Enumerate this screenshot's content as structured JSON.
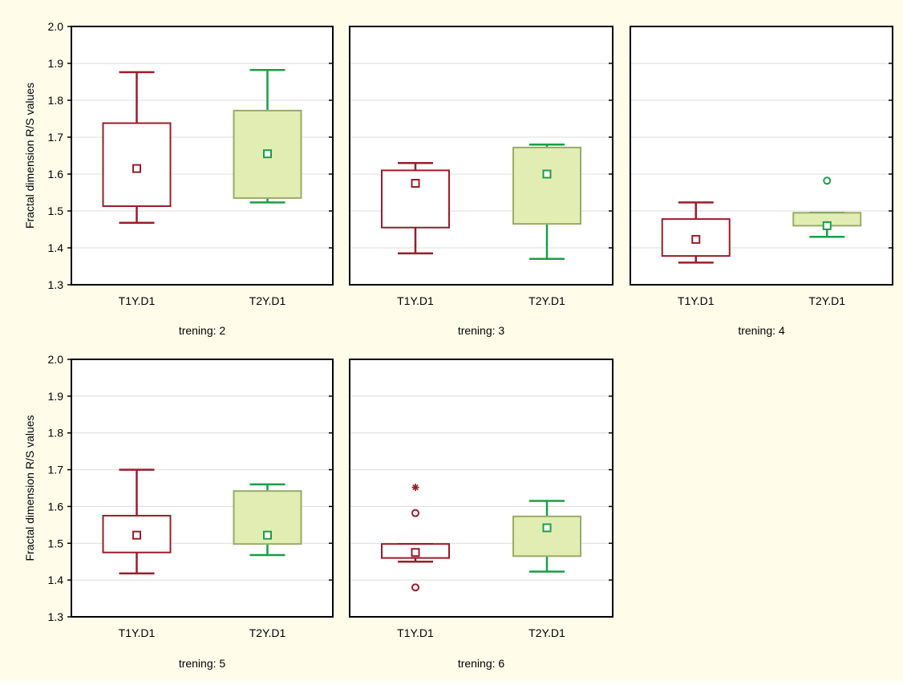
{
  "colors": {
    "background": "#fffdea",
    "plot_background": "#ffffff",
    "gridline": "#dcdcdc",
    "frame": "#000000",
    "t1_stroke": "#9b1c2a",
    "t1_fill": "#ffffff",
    "t2_stroke": "#1a9e46",
    "t2_fill": "#e2edb4",
    "t2_box_edge": "#9aaa68"
  },
  "chart_data": [
    {
      "type": "box",
      "title": "trening: 2",
      "ylabel": "Fractal dimension  R/S values",
      "ylim": [
        1.3,
        2.0
      ],
      "yticks": [
        "1.3",
        "1.4",
        "1.5",
        "1.6",
        "1.7",
        "1.8",
        "1.9",
        "2.0"
      ],
      "show_yticks": true,
      "grid": true,
      "categories": [
        "T1Y.D1",
        "T2Y.D1"
      ],
      "boxes": [
        {
          "category": "T1Y.D1",
          "whisker_low": 1.468,
          "q1": 1.513,
          "median": 1.615,
          "q3": 1.738,
          "whisker_high": 1.876,
          "outliers": [],
          "extremes": []
        },
        {
          "category": "T2Y.D1",
          "whisker_low": 1.523,
          "q1": 1.535,
          "median": 1.655,
          "q3": 1.772,
          "whisker_high": 1.882,
          "outliers": [],
          "extremes": []
        }
      ]
    },
    {
      "type": "box",
      "title": "trening: 3",
      "ylabel": "",
      "ylim": [
        1.3,
        2.0
      ],
      "yticks": [],
      "show_yticks": false,
      "grid": true,
      "categories": [
        "T1Y.D1",
        "T2Y.D1"
      ],
      "boxes": [
        {
          "category": "T1Y.D1",
          "whisker_low": 1.385,
          "q1": 1.455,
          "median": 1.575,
          "q3": 1.61,
          "whisker_high": 1.63,
          "outliers": [],
          "extremes": []
        },
        {
          "category": "T2Y.D1",
          "whisker_low": 1.37,
          "q1": 1.465,
          "median": 1.6,
          "q3": 1.672,
          "whisker_high": 1.68,
          "outliers": [],
          "extremes": []
        }
      ]
    },
    {
      "type": "box",
      "title": "trening: 4",
      "ylabel": "",
      "ylim": [
        1.3,
        2.0
      ],
      "yticks": [],
      "show_yticks": false,
      "grid": true,
      "categories": [
        "T1Y.D1",
        "T2Y.D1"
      ],
      "boxes": [
        {
          "category": "T1Y.D1",
          "whisker_low": 1.36,
          "q1": 1.378,
          "median": 1.423,
          "q3": 1.478,
          "whisker_high": 1.523,
          "outliers": [],
          "extremes": []
        },
        {
          "category": "T2Y.D1",
          "whisker_low": 1.43,
          "q1": 1.46,
          "median": 1.46,
          "q3": 1.495,
          "whisker_high": 1.495,
          "outliers": [
            1.582
          ],
          "extremes": []
        }
      ]
    },
    {
      "type": "box",
      "title": "trening: 5",
      "ylabel": "Fractal dimension  R/S values",
      "ylim": [
        1.3,
        2.0
      ],
      "yticks": [
        "1.3",
        "1.4",
        "1.5",
        "1.6",
        "1.7",
        "1.8",
        "1.9",
        "2.0"
      ],
      "show_yticks": true,
      "grid": true,
      "categories": [
        "T1Y.D1",
        "T2Y.D1"
      ],
      "boxes": [
        {
          "category": "T1Y.D1",
          "whisker_low": 1.418,
          "q1": 1.475,
          "median": 1.522,
          "q3": 1.575,
          "whisker_high": 1.7,
          "outliers": [],
          "extremes": []
        },
        {
          "category": "T2Y.D1",
          "whisker_low": 1.468,
          "q1": 1.498,
          "median": 1.522,
          "q3": 1.642,
          "whisker_high": 1.66,
          "outliers": [],
          "extremes": []
        }
      ]
    },
    {
      "type": "box",
      "title": "trening: 6",
      "ylabel": "",
      "ylim": [
        1.3,
        2.0
      ],
      "yticks": [],
      "show_yticks": false,
      "grid": true,
      "categories": [
        "T1Y.D1",
        "T2Y.D1"
      ],
      "boxes": [
        {
          "category": "T1Y.D1",
          "whisker_low": 1.45,
          "q1": 1.46,
          "median": 1.475,
          "q3": 1.498,
          "whisker_high": 1.498,
          "outliers": [
            1.582,
            1.38
          ],
          "extremes": [
            1.652
          ]
        },
        {
          "category": "T2Y.D1",
          "whisker_low": 1.423,
          "q1": 1.465,
          "median": 1.542,
          "q3": 1.573,
          "whisker_high": 1.615,
          "outliers": [],
          "extremes": []
        }
      ]
    }
  ]
}
